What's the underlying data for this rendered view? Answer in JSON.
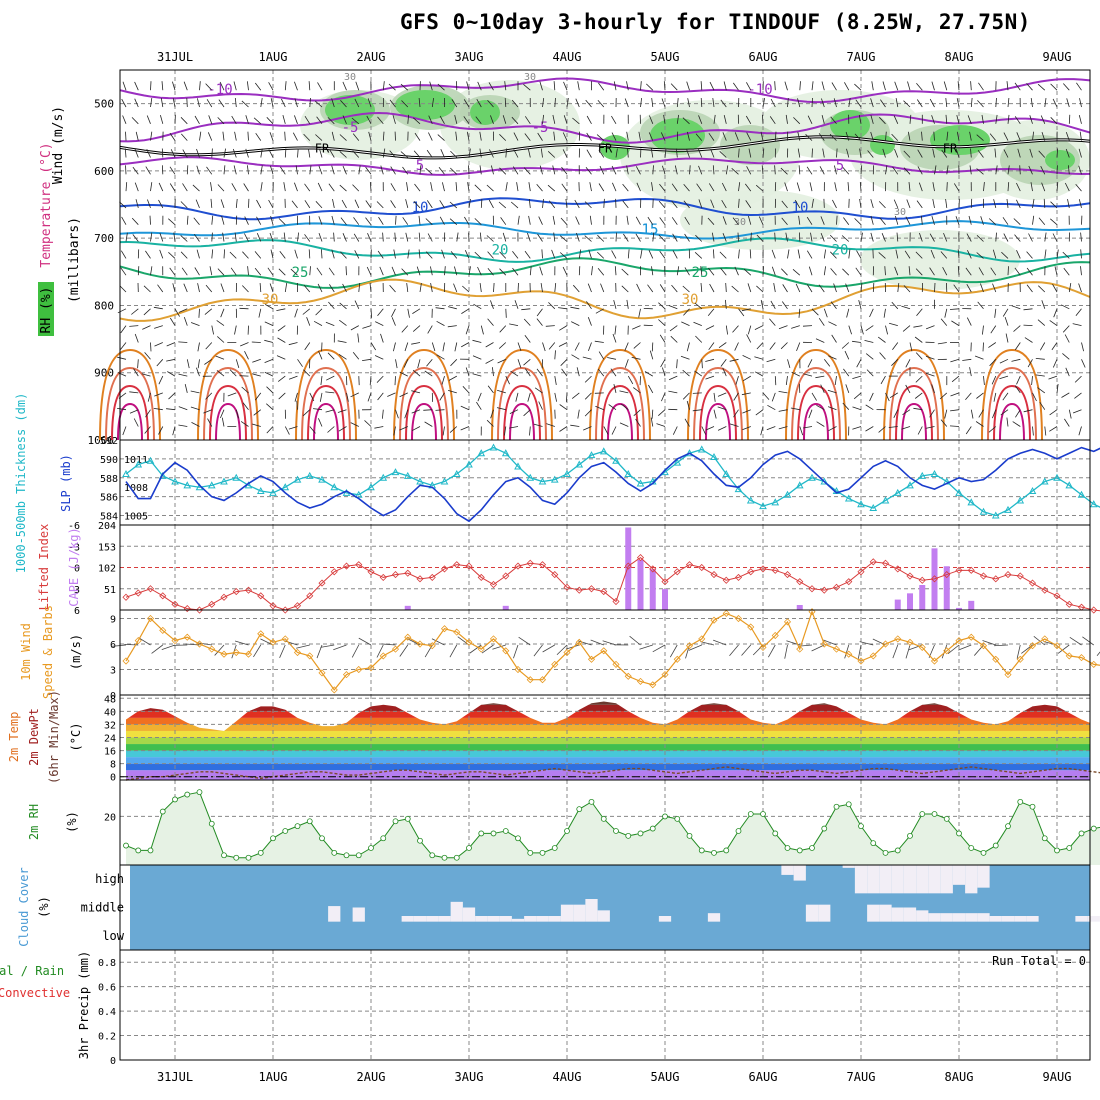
{
  "title": "GFS 0~10day 3-hourly for TINDOUF (8.25W, 27.75N)",
  "dates": [
    "31JUL",
    "1AUG",
    "2AUG",
    "3AUG",
    "4AUG",
    "5AUG",
    "6AUG",
    "7AUG",
    "8AUG",
    "9AUG"
  ],
  "colors": {
    "grid": "#888888",
    "cloud_blue": "#6aa9d4",
    "rh_fill": "#e6f2e4",
    "rh_line": "#228b22",
    "thick_line": "#20b8c8",
    "slp_line": "#1a3ccc",
    "li_line": "#d83c3c",
    "cape_bar": "#c27ef0",
    "wind_line": "#e89a22"
  },
  "panels": {
    "upper": {
      "ylabel_wind": "Wind (m/s)",
      "ylabel_temp": "Temperature (°C)",
      "ylabel_rh": "RH (%)",
      "ylabel_p": "(millibars)",
      "pressure_ticks": [
        "500",
        "600",
        "700",
        "800",
        "900",
        "1000"
      ],
      "freezing_label": "FR",
      "rh_label": "30",
      "temp_contours": [
        {
          "label": "-10",
          "color": "#9a2ec0"
        },
        {
          "label": "-5",
          "color": "#9a2ec0"
        },
        {
          "label": "5",
          "color": "#9a2ec0"
        },
        {
          "label": "10",
          "color": "#1f4ed0"
        },
        {
          "label": "15",
          "color": "#1e96d8"
        },
        {
          "label": "20",
          "color": "#19b2a2"
        },
        {
          "label": "25",
          "color": "#1aa66a"
        },
        {
          "label": "30",
          "color": "#e0a033"
        }
      ]
    },
    "thickness": {
      "ylabel_left": "1000-500mb Thickness (dm)",
      "ylabel_right": "SLP (mb)",
      "left_ticks": [
        "592",
        "590",
        "588",
        "586",
        "584"
      ],
      "right_ticks": [
        "1011",
        "1008",
        "1005"
      ]
    },
    "cape": {
      "ylabel_left": "Lifted Index",
      "ylabel_right": "CAPE (J/kg)",
      "left_ticks": [
        "-6",
        "-3",
        "0",
        "3",
        "6"
      ],
      "right_ticks": [
        "204",
        "153",
        "102",
        "51"
      ]
    },
    "wind10": {
      "ylabel": "10m Wind Speed & Barbs",
      "unit": "(m/s)",
      "ticks": [
        "9",
        "6",
        "3",
        "0"
      ]
    },
    "temp2m": {
      "ylabel": "2m Temp 2m DewPt (6hr Min/Max)",
      "unit": "(°C)",
      "ticks": [
        "48",
        "40",
        "32",
        "24",
        "16",
        "8",
        "0"
      ]
    },
    "rh2m": {
      "ylabel": "2m RH",
      "unit": "(%)",
      "ticks": [
        "20"
      ]
    },
    "cloud": {
      "ylabel": "Cloud Cover",
      "unit": "(%)",
      "levels": [
        "high",
        "middle",
        "low"
      ]
    },
    "precip": {
      "ylabel": "Total / Rain Convective",
      "ylabel2": "3hr Precip (mm)",
      "ticks": [
        "0.8",
        "0.6",
        "0.4",
        "0.2",
        "0"
      ],
      "run_total": "Run Total = 0"
    }
  },
  "chart_data": [
    {
      "type": "line",
      "name": "thickness_slp",
      "x_unit": "3-hourly step from 30JUL 12Z",
      "series": [
        {
          "name": "1000-500mb Thickness",
          "unit": "dm",
          "values": [
            588.4,
            589.4,
            589.8,
            588.2,
            587.6,
            587.2,
            587.0,
            587.2,
            587.6,
            588.0,
            587.2,
            586.6,
            586.4,
            587.0,
            587.8,
            588.2,
            587.8,
            587.0,
            586.4,
            586.2,
            587.0,
            588.0,
            588.6,
            588.2,
            587.6,
            587.2,
            587.6,
            588.4,
            589.4,
            590.6,
            591.2,
            590.6,
            589.2,
            588.0,
            587.6,
            587.8,
            588.4,
            589.4,
            590.4,
            590.8,
            589.8,
            588.4,
            587.4,
            587.6,
            588.6,
            589.6,
            590.6,
            591.0,
            590.2,
            588.4,
            586.8,
            585.6,
            585.0,
            585.4,
            586.2,
            587.2,
            588.0,
            587.6,
            586.6,
            585.8,
            585.2,
            584.8,
            585.6,
            586.4,
            587.2,
            588.2,
            588.4,
            587.6,
            586.4,
            585.4,
            584.4,
            584.0,
            584.6,
            585.6,
            586.6,
            587.6,
            588.0,
            587.2,
            586.2,
            585.2,
            584.6
          ]
        },
        {
          "name": "SLP",
          "unit": "mb",
          "values": [
            1008.6,
            1006.8,
            1006.8,
            1009.4,
            1010.6,
            1009.8,
            1008.2,
            1007.0,
            1006.6,
            1007.4,
            1008.4,
            1009.2,
            1008.6,
            1007.4,
            1006.4,
            1005.8,
            1006.2,
            1007.0,
            1007.6,
            1006.8,
            1005.8,
            1005.0,
            1005.6,
            1007.0,
            1008.2,
            1008.0,
            1006.8,
            1005.2,
            1004.4,
            1005.6,
            1007.2,
            1008.6,
            1009.0,
            1008.0,
            1006.6,
            1006.2,
            1007.4,
            1009.0,
            1010.2,
            1010.6,
            1009.6,
            1008.4,
            1007.6,
            1008.4,
            1009.8,
            1011.0,
            1011.6,
            1010.8,
            1009.4,
            1008.2,
            1008.0,
            1009.0,
            1010.4,
            1011.4,
            1011.8,
            1011.0,
            1009.8,
            1008.6,
            1007.4,
            1007.8,
            1009.0,
            1010.2,
            1010.8,
            1010.2,
            1009.0,
            1008.2,
            1007.8,
            1008.4,
            1009.0,
            1008.6,
            1008.8,
            1009.8,
            1011.0,
            1011.6,
            1012.0,
            1011.6,
            1011.0,
            1011.6,
            1012.2,
            1011.8,
            1012.4
          ]
        }
      ],
      "left_ylim": [
        583,
        592
      ],
      "right_ylim": [
        1004,
        1013
      ]
    },
    {
      "type": "bar",
      "name": "cape_li",
      "series": [
        {
          "name": "Lifted Index",
          "unit": "C",
          "values": [
            4.2,
            3.6,
            3.0,
            4.0,
            5.2,
            5.8,
            6.0,
            5.2,
            4.2,
            3.4,
            3.2,
            4.0,
            5.4,
            6.0,
            5.4,
            4.0,
            2.2,
            0.6,
            -0.2,
            -0.4,
            0.6,
            1.4,
            1.0,
            0.8,
            1.6,
            1.4,
            0.2,
            -0.4,
            -0.2,
            1.4,
            2.4,
            1.2,
            -0.2,
            -0.6,
            -0.4,
            1.0,
            2.8,
            3.2,
            3.0,
            3.4,
            4.8,
            -0.2,
            -1.4,
            0.2,
            2.0,
            0.6,
            -0.4,
            0.0,
            1.0,
            1.8,
            1.4,
            0.6,
            0.2,
            0.4,
            1.0,
            2.0,
            3.0,
            3.2,
            2.8,
            2.0,
            0.6,
            -0.8,
            -0.6,
            0.2,
            1.2,
            1.8,
            1.6,
            1.0,
            0.4,
            0.4,
            1.2,
            1.6,
            1.0,
            1.2,
            2.2,
            3.2,
            4.0,
            5.2,
            5.6,
            6.0,
            6.2
          ]
        },
        {
          "name": "CAPE",
          "unit": "J/kg",
          "values": [
            0,
            0,
            0,
            0,
            0,
            0,
            0,
            0,
            0,
            0,
            0,
            0,
            0,
            0,
            0,
            0,
            0,
            0,
            0,
            0,
            0,
            0,
            0,
            10,
            0,
            0,
            0,
            0,
            0,
            0,
            0,
            10,
            0,
            0,
            0,
            0,
            0,
            0,
            0,
            0,
            0,
            198,
            120,
            98,
            50,
            0,
            0,
            0,
            0,
            0,
            0,
            0,
            0,
            0,
            0,
            12,
            0,
            0,
            0,
            0,
            0,
            0,
            0,
            25,
            40,
            60,
            148,
            105,
            5,
            22,
            0,
            0,
            0,
            0,
            0,
            0,
            0,
            0,
            0,
            0,
            0
          ]
        }
      ],
      "left_ylim": [
        6,
        -6
      ],
      "right_ylim": [
        0,
        204
      ]
    },
    {
      "type": "line",
      "name": "wind10m",
      "unit": "m/s",
      "values": [
        4.0,
        6.4,
        9.0,
        7.6,
        6.4,
        6.8,
        6.0,
        5.4,
        4.8,
        5.0,
        4.8,
        7.2,
        6.2,
        6.6,
        5.0,
        4.6,
        2.6,
        0.6,
        2.4,
        3.0,
        3.2,
        4.6,
        5.4,
        6.8,
        6.0,
        5.8,
        7.8,
        7.4,
        6.2,
        5.4,
        6.6,
        5.2,
        3.0,
        1.8,
        1.8,
        3.6,
        5.0,
        6.2,
        4.2,
        5.2,
        3.6,
        2.2,
        1.6,
        1.2,
        2.4,
        4.2,
        5.8,
        6.6,
        8.8,
        9.6,
        9.0,
        8.0,
        5.6,
        7.0,
        8.6,
        5.4,
        9.8,
        6.0,
        5.4,
        4.8,
        4.0,
        4.6,
        6.0,
        6.6,
        6.2,
        5.6,
        4.0,
        5.2,
        6.4,
        6.8,
        5.8,
        4.2,
        2.4,
        4.2,
        5.8,
        6.6,
        5.8,
        4.6,
        4.4,
        3.6,
        3.4
      ],
      "ylim": [
        0,
        10
      ]
    },
    {
      "type": "area",
      "name": "temp2m",
      "unit": "C",
      "series": [
        {
          "name": "2m Temp",
          "values": [
            35,
            40,
            42,
            41,
            37,
            33,
            30,
            29,
            28,
            34,
            40,
            43,
            43,
            41,
            36,
            33,
            31,
            31,
            33,
            39,
            43,
            44,
            43,
            39,
            35,
            33,
            32,
            34,
            39,
            44,
            45,
            44,
            40,
            36,
            33,
            33,
            36,
            41,
            45,
            46,
            45,
            40,
            36,
            33,
            32,
            35,
            40,
            44,
            45,
            44,
            40,
            35,
            33,
            32,
            35,
            40,
            44,
            45,
            43,
            39,
            35,
            33,
            32,
            35,
            40,
            44,
            45,
            43,
            39,
            35,
            33,
            32,
            34,
            39,
            43,
            44,
            43,
            39,
            35,
            32,
            31
          ]
        },
        {
          "name": "2m DewPt",
          "values": [
            -2,
            -1,
            0,
            0,
            1,
            2,
            3,
            3,
            2,
            1,
            0,
            -1,
            0,
            1,
            2,
            3,
            3,
            2,
            1,
            1,
            2,
            3,
            4,
            4,
            3,
            2,
            1,
            2,
            3,
            3,
            2,
            1,
            2,
            3,
            4,
            5,
            4,
            3,
            2,
            3,
            4,
            5,
            5,
            4,
            3,
            2,
            3,
            4,
            5,
            6,
            5,
            4,
            3,
            2,
            3,
            4,
            4,
            3,
            2,
            3,
            4,
            5,
            5,
            4,
            3,
            2,
            3,
            4,
            5,
            6,
            5,
            4,
            3,
            2,
            3,
            4,
            5,
            5,
            4,
            3,
            2
          ]
        }
      ],
      "ylim": [
        -2,
        50
      ]
    },
    {
      "type": "area",
      "name": "rh2m",
      "unit": "%",
      "values": [
        8,
        6,
        6,
        22,
        27,
        29,
        30,
        17,
        4,
        3,
        3,
        5,
        11,
        14,
        16,
        18,
        11,
        5,
        4,
        4,
        7,
        11,
        18,
        19,
        10,
        4,
        3,
        3,
        7,
        13,
        13,
        14,
        11,
        5,
        5,
        7,
        14,
        23,
        26,
        19,
        14,
        12,
        13,
        15,
        20,
        19,
        12,
        6,
        5,
        6,
        14,
        21,
        21,
        13,
        7,
        6,
        7,
        15,
        24,
        25,
        16,
        9,
        5,
        6,
        12,
        21,
        21,
        19,
        13,
        7,
        5,
        8,
        16,
        26,
        24,
        11,
        6,
        7,
        13,
        15,
        16
      ],
      "ylim": [
        0,
        35
      ]
    },
    {
      "type": "bar",
      "name": "cloud_cover",
      "series": [
        {
          "name": "high",
          "unit": "%",
          "values": [
            0,
            0,
            0,
            0,
            0,
            0,
            0,
            0,
            0,
            0,
            0,
            0,
            0,
            0,
            0,
            0,
            0,
            0,
            0,
            0,
            0,
            0,
            0,
            0,
            0,
            0,
            0,
            0,
            0,
            0,
            0,
            0,
            0,
            0,
            0,
            0,
            0,
            0,
            0,
            0,
            0,
            0,
            0,
            0,
            0,
            0,
            0,
            0,
            0,
            0,
            0,
            0,
            0,
            0,
            35,
            55,
            0,
            0,
            0,
            10,
            100,
            100,
            100,
            100,
            100,
            100,
            100,
            100,
            70,
            100,
            80,
            0,
            0,
            0,
            0,
            0,
            0,
            0,
            0,
            0,
            0
          ]
        },
        {
          "name": "middle",
          "unit": "%",
          "values": [
            0,
            0,
            0,
            0,
            0,
            0,
            0,
            0,
            0,
            0,
            0,
            0,
            0,
            0,
            0,
            0,
            0,
            55,
            0,
            50,
            0,
            0,
            0,
            20,
            20,
            20,
            20,
            70,
            50,
            20,
            20,
            20,
            10,
            20,
            20,
            20,
            60,
            60,
            80,
            40,
            0,
            0,
            0,
            0,
            20,
            0,
            0,
            0,
            30,
            0,
            0,
            0,
            0,
            0,
            0,
            0,
            60,
            60,
            0,
            0,
            0,
            60,
            60,
            50,
            50,
            40,
            30,
            30,
            30,
            30,
            30,
            20,
            20,
            20,
            20,
            0,
            0,
            0,
            20,
            20,
            20
          ]
        }
      ],
      "ylim": [
        0,
        100
      ]
    },
    {
      "type": "bar",
      "name": "precip3hr",
      "unit": "mm",
      "values": [],
      "ylim": [
        0,
        0.9
      ]
    }
  ]
}
